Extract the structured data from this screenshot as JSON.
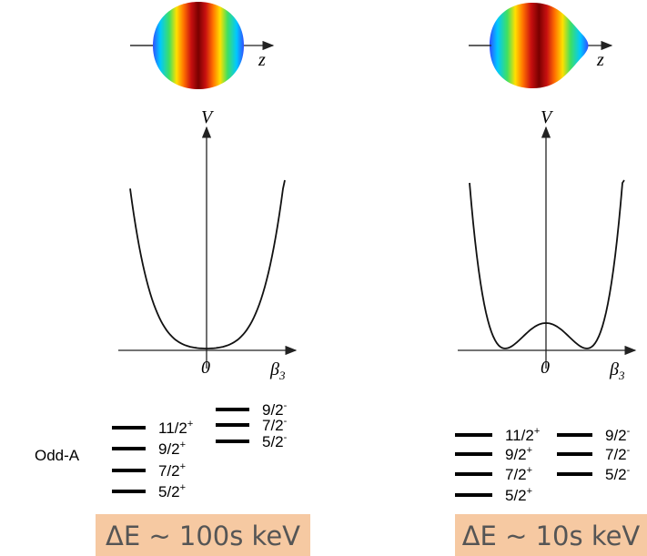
{
  "row_label": "Odd-A",
  "panels": [
    {
      "shape_axis": "z",
      "v_axis": "V",
      "origin": "0",
      "beta_symbol": "β",
      "beta_subscript": "3",
      "levels_left": [
        {
          "spin": "11/2",
          "parity": "+"
        },
        {
          "spin": "9/2",
          "parity": "+"
        },
        {
          "spin": "7/2",
          "parity": "+"
        },
        {
          "spin": "5/2",
          "parity": "+"
        }
      ],
      "levels_right": [
        {
          "spin": "9/2",
          "parity": "-"
        },
        {
          "spin": "7/2",
          "parity": "-"
        },
        {
          "spin": "5/2",
          "parity": "-"
        }
      ],
      "energy_gap": "ΔE ~ 100s keV"
    },
    {
      "shape_axis": "z",
      "v_axis": "V",
      "origin": "0",
      "beta_symbol": "β",
      "beta_subscript": "3",
      "levels_left": [
        {
          "spin": "11/2",
          "parity": "+"
        },
        {
          "spin": "9/2",
          "parity": "+"
        },
        {
          "spin": "7/2",
          "parity": "+"
        },
        {
          "spin": "5/2",
          "parity": "+"
        }
      ],
      "levels_right": [
        {
          "spin": "9/2",
          "parity": "-"
        },
        {
          "spin": "7/2",
          "parity": "-"
        },
        {
          "spin": "5/2",
          "parity": "-"
        }
      ],
      "energy_gap": "ΔE ~ 10s keV"
    }
  ]
}
